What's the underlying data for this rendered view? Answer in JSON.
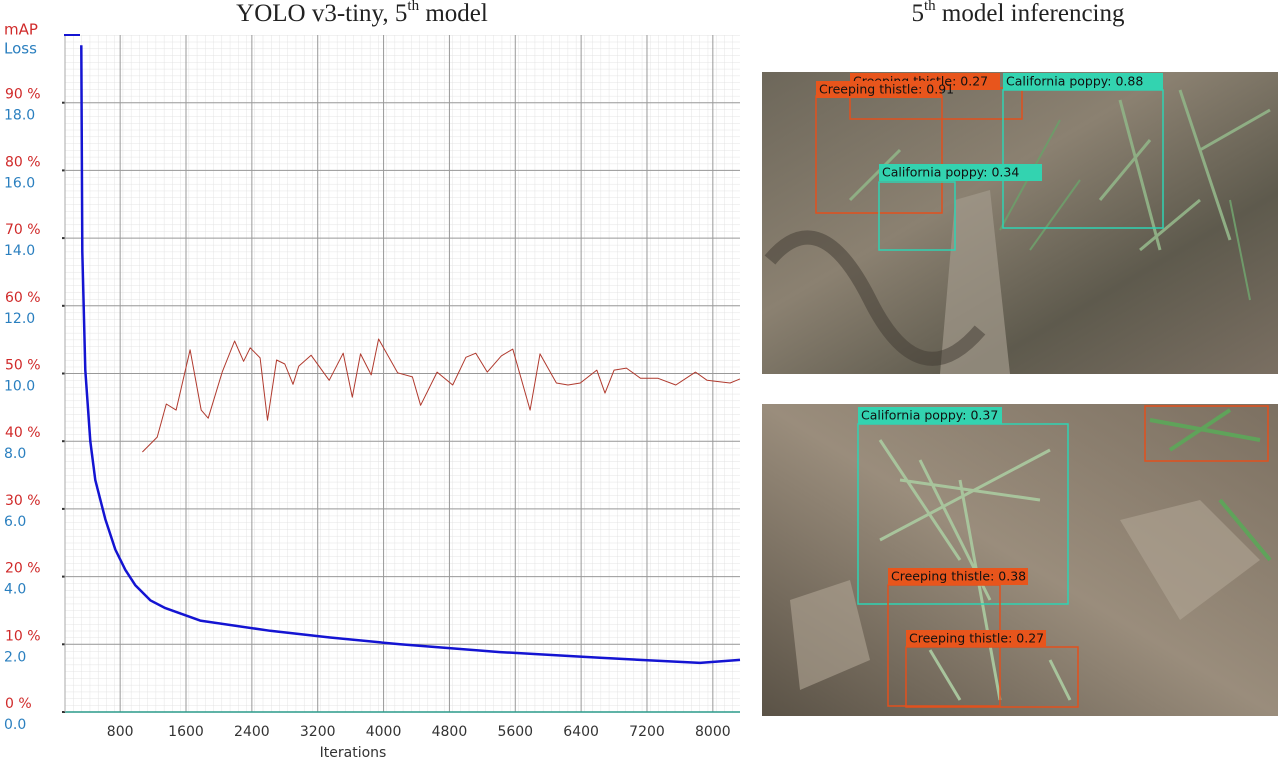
{
  "chart_data": {
    "type": "line",
    "title_parts": [
      "YOLO v3-tiny, 5",
      "th",
      " model"
    ],
    "xlabel": "Iterations",
    "xlim": [
      130,
      8330
    ],
    "xticks": [
      800,
      1600,
      2400,
      3200,
      4000,
      4800,
      5600,
      6400,
      7200,
      8000
    ],
    "ylim": [
      0,
      20
    ],
    "yticks": [
      {
        "value": 0,
        "label": "0.0"
      },
      {
        "value": 2,
        "label": "2.0"
      },
      {
        "value": 4,
        "label": "4.0"
      },
      {
        "value": 6,
        "label": "6.0"
      },
      {
        "value": 8,
        "label": "8.0"
      },
      {
        "value": 10,
        "label": "10.0"
      },
      {
        "value": 12,
        "label": "12.0"
      },
      {
        "value": 14,
        "label": "14.0"
      },
      {
        "value": 16,
        "label": "16.0"
      },
      {
        "value": 18,
        "label": "18.0"
      }
    ],
    "y2lim": [
      0,
      100
    ],
    "y2ticks": [
      {
        "value": 0,
        "label": "0 %"
      },
      {
        "value": 10,
        "label": "10 %"
      },
      {
        "value": 20,
        "label": "20 %"
      },
      {
        "value": 30,
        "label": "30 %"
      },
      {
        "value": 40,
        "label": "40 %"
      },
      {
        "value": 50,
        "label": "50 %"
      },
      {
        "value": 60,
        "label": "60 %"
      },
      {
        "value": 70,
        "label": "70 %"
      },
      {
        "value": 80,
        "label": "80 %"
      },
      {
        "value": 90,
        "label": "90 %"
      }
    ],
    "grid": true,
    "series": [
      {
        "name": "mAP",
        "color": "#b03a2e",
        "axis": "y2",
        "x": [
          1070,
          1250,
          1360,
          1480,
          1650,
          1785,
          1870,
          2040,
          2190,
          2300,
          2380,
          2500,
          2590,
          2700,
          2800,
          2900,
          2970,
          3120,
          3340,
          3510,
          3620,
          3720,
          3850,
          3940,
          4170,
          4350,
          4450,
          4650,
          4840,
          5000,
          5120,
          5260,
          5430,
          5570,
          5780,
          5900,
          6100,
          6240,
          6390,
          6590,
          6690,
          6800,
          6950,
          7120,
          7330,
          7550,
          7790,
          7930,
          8210,
          8330
        ],
        "values": [
          38.4,
          40.6,
          45.5,
          44.6,
          53.5,
          44.6,
          43.4,
          50.2,
          54.8,
          51.8,
          53.8,
          52.3,
          43.1,
          52,
          51.4,
          48.4,
          51.1,
          52.7,
          49,
          53,
          46.5,
          52.9,
          49.8,
          55.1,
          50.1,
          49.5,
          45.3,
          50.2,
          48.3,
          52.4,
          53,
          50.2,
          52.6,
          53.6,
          44.6,
          52.9,
          48.6,
          48.3,
          48.6,
          50.5,
          47.1,
          50.5,
          50.8,
          49.3,
          49.3,
          48.3,
          50.2,
          49,
          48.6,
          49.2
        ]
      },
      {
        "name": "Loss",
        "color": "#1414d2",
        "x": [
          328,
          340,
          376,
          437,
          498,
          619,
          741,
          862,
          983,
          1166,
          1348,
          1773,
          2623,
          3351,
          4201,
          5415,
          6629,
          7844,
          8330
        ],
        "values": [
          19.7,
          13.6,
          10.1,
          8.0,
          6.85,
          5.7,
          4.8,
          4.2,
          3.75,
          3.3,
          3.07,
          2.7,
          2.4,
          2.2,
          2.0,
          1.77,
          1.6,
          1.45,
          1.54
        ]
      }
    ]
  },
  "inference": {
    "title_parts": [
      "5",
      "th",
      " model inferencing"
    ],
    "images": [
      {
        "detections": [
          {
            "label": "Creeping thistle: 0.27"
          },
          {
            "label": "California poppy: 0.88"
          },
          {
            "label": "Creeping thistle: 0.91"
          },
          {
            "label": "California poppy: 0.34"
          }
        ]
      },
      {
        "detections": [
          {
            "label": "California poppy: 0.37"
          },
          {
            "label": "Creeping thistle: 0.38"
          },
          {
            "label": "Creeping thistle: 0.27"
          }
        ]
      }
    ]
  }
}
